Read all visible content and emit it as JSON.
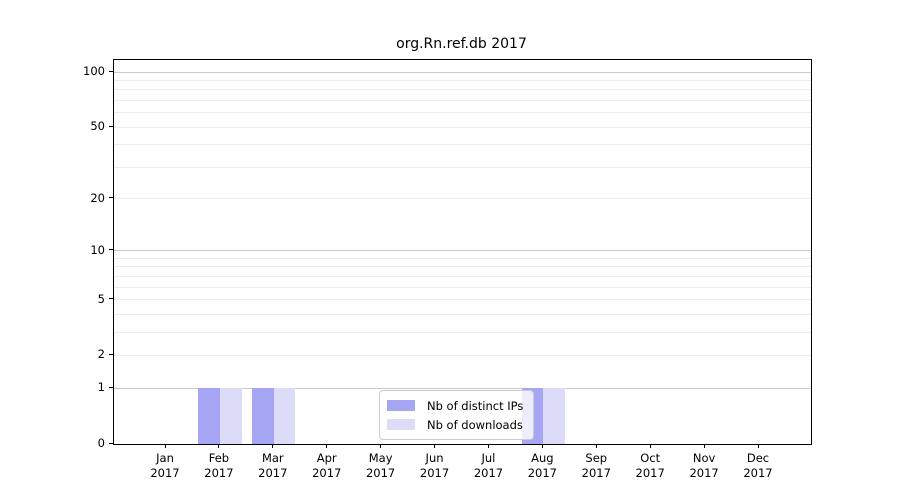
{
  "title": "org.Rn.ref.db 2017",
  "colors": {
    "grid_major": "#c9c9c9",
    "grid_minor": "#ececec",
    "axis": "#000000",
    "text": "#000000",
    "legend_border": "#cccccc",
    "legend_background": "rgba(255,255,255,0.8)"
  },
  "chart_data": {
    "type": "bar",
    "title": "org.Rn.ref.db 2017",
    "x_categories": [
      "Jan",
      "Feb",
      "Mar",
      "Apr",
      "May",
      "Jun",
      "Jul",
      "Aug",
      "Sep",
      "Oct",
      "Nov",
      "Dec"
    ],
    "x_year": "2017",
    "series": [
      {
        "name": "Nb of distinct IPs",
        "color": "#a6a6f5",
        "values": [
          0,
          1,
          1,
          0,
          0,
          0,
          0,
          1,
          0,
          0,
          0,
          0
        ]
      },
      {
        "name": "Nb of downloads",
        "color": "#dcdcf9",
        "values": [
          0,
          1,
          1,
          0,
          0,
          0,
          0,
          1,
          0,
          0,
          0,
          0
        ]
      }
    ],
    "y_scale": "log1p",
    "ylim": [
      0,
      116.3
    ],
    "y_ticks": [
      0,
      1,
      2,
      5,
      10,
      20,
      50,
      100
    ],
    "y_major_gridlines": [
      1,
      10,
      100
    ],
    "y_minor_gridlines": [
      2,
      3,
      4,
      5,
      6,
      7,
      8,
      9,
      20,
      30,
      40,
      50,
      60,
      70,
      80,
      90
    ],
    "grid": true,
    "legend_position": "lower center"
  }
}
